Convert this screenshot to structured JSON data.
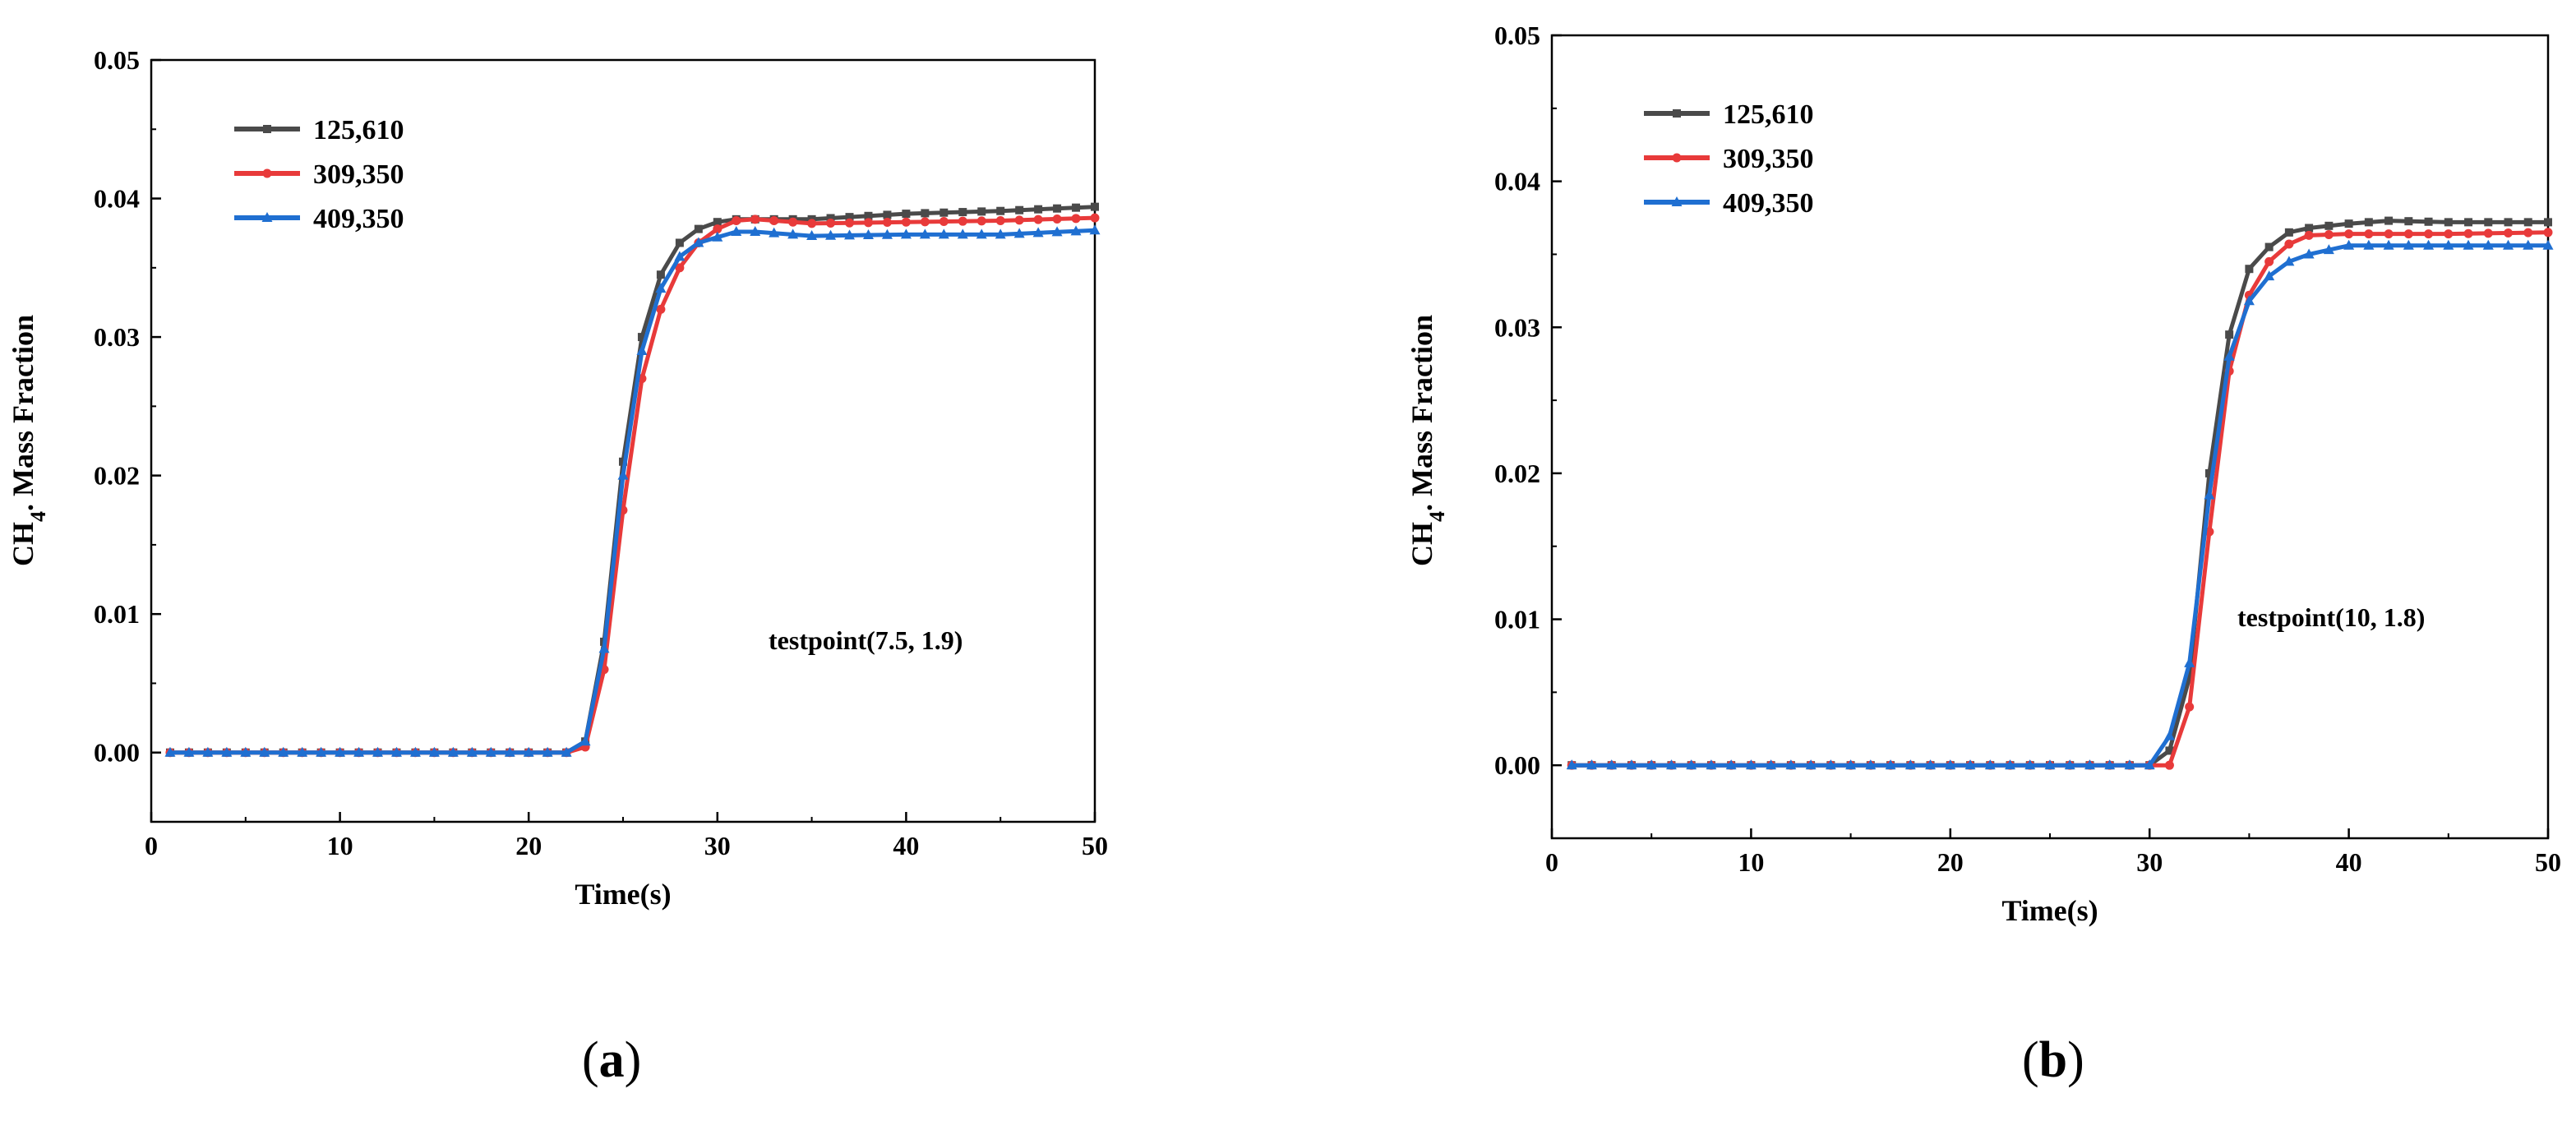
{
  "chart_data": [
    {
      "type": "line",
      "panel_label": "a",
      "caption_open": "(",
      "caption_close": ")",
      "xlabel": "Time(s)",
      "ylabel_main": "CH",
      "ylabel_sub": "4",
      "ylabel_rest": ". Mass Fraction",
      "xlim": [
        0,
        50
      ],
      "ylim": [
        -0.005,
        0.05
      ],
      "xticks": [
        0,
        10,
        20,
        30,
        40,
        50
      ],
      "yticks": [
        0.0,
        0.01,
        0.02,
        0.03,
        0.04,
        0.05
      ],
      "ytick_labels": [
        "0.00",
        "0.01",
        "0.02",
        "0.03",
        "0.04",
        "0.05"
      ],
      "annotation": "testpoint(7.5, 1.9)",
      "legend_position": "top-left",
      "series": [
        {
          "name": "125,610",
          "color": "#4a4a4a",
          "marker": "square",
          "points": [
            [
              1,
              0
            ],
            [
              22,
              0
            ],
            [
              23,
              0.0008
            ],
            [
              24,
              0.008
            ],
            [
              25,
              0.021
            ],
            [
              26,
              0.03
            ],
            [
              27,
              0.0345
            ],
            [
              28,
              0.0368
            ],
            [
              29,
              0.0378
            ],
            [
              30,
              0.0383
            ],
            [
              31,
              0.0385
            ],
            [
              35,
              0.0385
            ],
            [
              40,
              0.0389
            ],
            [
              45,
              0.0391
            ],
            [
              50,
              0.0394
            ]
          ]
        },
        {
          "name": "309,350",
          "color": "#e83a3a",
          "marker": "circle",
          "points": [
            [
              1,
              0
            ],
            [
              22,
              0
            ],
            [
              23,
              0.0004
            ],
            [
              24,
              0.006
            ],
            [
              25,
              0.0175
            ],
            [
              26,
              0.027
            ],
            [
              27,
              0.032
            ],
            [
              28,
              0.035
            ],
            [
              29,
              0.0368
            ],
            [
              30,
              0.0378
            ],
            [
              31,
              0.0384
            ],
            [
              32,
              0.0385
            ],
            [
              35,
              0.0382
            ],
            [
              40,
              0.0383
            ],
            [
              45,
              0.0384
            ],
            [
              50,
              0.0386
            ]
          ]
        },
        {
          "name": "409,350",
          "color": "#1f6fd1",
          "marker": "triangle",
          "points": [
            [
              1,
              0
            ],
            [
              22,
              0
            ],
            [
              23,
              0.0008
            ],
            [
              24,
              0.0075
            ],
            [
              25,
              0.02
            ],
            [
              26,
              0.029
            ],
            [
              27,
              0.0335
            ],
            [
              28,
              0.0358
            ],
            [
              29,
              0.0368
            ],
            [
              30,
              0.0372
            ],
            [
              31,
              0.0376
            ],
            [
              32,
              0.0376
            ],
            [
              35,
              0.0373
            ],
            [
              40,
              0.0374
            ],
            [
              45,
              0.0374
            ],
            [
              50,
              0.0377
            ]
          ]
        }
      ]
    },
    {
      "type": "line",
      "panel_label": "b",
      "caption_open": "(",
      "caption_close": ")",
      "xlabel": "Time(s)",
      "ylabel_main": "CH",
      "ylabel_sub": "4",
      "ylabel_rest": ". Mass Fraction",
      "xlim": [
        0,
        50
      ],
      "ylim": [
        -0.005,
        0.05
      ],
      "xticks": [
        0,
        10,
        20,
        30,
        40,
        50
      ],
      "yticks": [
        0.0,
        0.01,
        0.02,
        0.03,
        0.04,
        0.05
      ],
      "ytick_labels": [
        "0.00",
        "0.01",
        "0.02",
        "0.03",
        "0.04",
        "0.05"
      ],
      "annotation": "testpoint(10, 1.8)",
      "legend_position": "top-left",
      "series": [
        {
          "name": "125,610",
          "color": "#4a4a4a",
          "marker": "square",
          "points": [
            [
              1,
              0
            ],
            [
              30,
              0
            ],
            [
              31,
              0.001
            ],
            [
              32,
              0.006
            ],
            [
              33,
              0.02
            ],
            [
              34,
              0.0295
            ],
            [
              35,
              0.034
            ],
            [
              36,
              0.0355
            ],
            [
              37,
              0.0365
            ],
            [
              38,
              0.0368
            ],
            [
              40,
              0.0371
            ],
            [
              42,
              0.0373
            ],
            [
              45,
              0.0372
            ],
            [
              50,
              0.0372
            ]
          ]
        },
        {
          "name": "309,350",
          "color": "#e83a3a",
          "marker": "circle",
          "points": [
            [
              1,
              0
            ],
            [
              31,
              0
            ],
            [
              32,
              0.004
            ],
            [
              33,
              0.016
            ],
            [
              34,
              0.027
            ],
            [
              35,
              0.0322
            ],
            [
              36,
              0.0345
            ],
            [
              37,
              0.0357
            ],
            [
              38,
              0.0363
            ],
            [
              40,
              0.0364
            ],
            [
              45,
              0.0364
            ],
            [
              50,
              0.0365
            ]
          ]
        },
        {
          "name": "409,350",
          "color": "#1f6fd1",
          "marker": "triangle",
          "points": [
            [
              1,
              0
            ],
            [
              30,
              0
            ],
            [
              31,
              0.002
            ],
            [
              32,
              0.007
            ],
            [
              33,
              0.0185
            ],
            [
              34,
              0.028
            ],
            [
              35,
              0.0318
            ],
            [
              36,
              0.0335
            ],
            [
              37,
              0.0345
            ],
            [
              38,
              0.035
            ],
            [
              39,
              0.0353
            ],
            [
              40,
              0.0356
            ],
            [
              45,
              0.0356
            ],
            [
              50,
              0.0356
            ]
          ]
        }
      ]
    }
  ]
}
